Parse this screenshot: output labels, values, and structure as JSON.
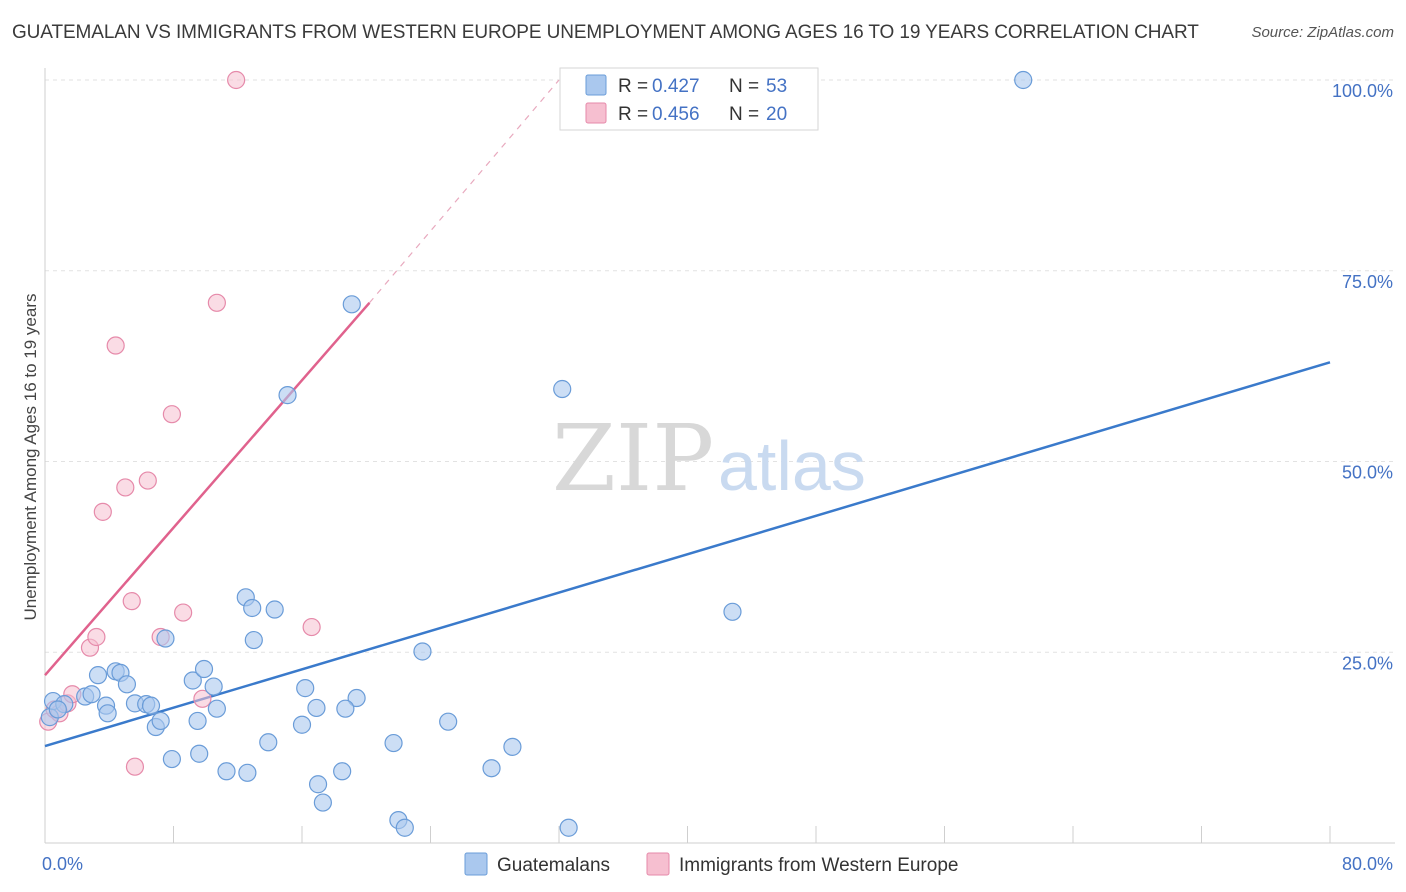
{
  "title": "GUATEMALAN VS IMMIGRANTS FROM WESTERN EUROPE UNEMPLOYMENT AMONG AGES 16 TO 19 YEARS CORRELATION CHART",
  "source": "Source: ZipAtlas.com",
  "watermark": {
    "zip": "ZIP",
    "atlas": "atlas"
  },
  "colors": {
    "blue_fill": "#aac8ee",
    "blue_stroke": "#6a9cd8",
    "blue_line": "#3a7acb",
    "pink_fill": "#f6bfd0",
    "pink_stroke": "#e68aaa",
    "pink_line": "#e0628d",
    "grid": "#e2e2e2",
    "axis_text": "#4472c4"
  },
  "legend": {
    "row1": {
      "r_label": "R =",
      "r_value": "0.427",
      "n_label": "N =",
      "n_value": "53"
    },
    "row2": {
      "r_label": "R =",
      "r_value": "0.456",
      "n_label": "N =",
      "n_value": "20"
    }
  },
  "chart_data": {
    "type": "scatter",
    "title": "GUATEMALAN VS IMMIGRANTS FROM WESTERN EUROPE UNEMPLOYMENT AMONG AGES 16 TO 19 YEARS CORRELATION CHART",
    "xlabel": "",
    "ylabel": "Unemployment Among Ages 16 to 19 years",
    "xlim": [
      0,
      80
    ],
    "ylim": [
      0,
      100
    ],
    "x_tick_labels": [
      "0.0%",
      "80.0%"
    ],
    "y_ticks": [
      25,
      50,
      75,
      100
    ],
    "y_tick_labels": [
      "25.0%",
      "50.0%",
      "75.0%",
      "100.0%"
    ],
    "grid": true,
    "legend_position": "top-center",
    "series": [
      {
        "name": "Guatemalans",
        "color": "#aac8ee",
        "r": 0.427,
        "n": 53,
        "trend": {
          "x": [
            0,
            80
          ],
          "y": [
            12.7,
            63.0
          ]
        },
        "points": [
          {
            "x": 0.3,
            "y": 16.5
          },
          {
            "x": 0.5,
            "y": 18.6
          },
          {
            "x": 1.2,
            "y": 18.2
          },
          {
            "x": 2.5,
            "y": 19.2
          },
          {
            "x": 2.9,
            "y": 19.5
          },
          {
            "x": 3.3,
            "y": 22.0
          },
          {
            "x": 3.8,
            "y": 18.0
          },
          {
            "x": 3.9,
            "y": 17.0
          },
          {
            "x": 4.4,
            "y": 22.5
          },
          {
            "x": 4.7,
            "y": 22.3
          },
          {
            "x": 5.1,
            "y": 20.8
          },
          {
            "x": 5.6,
            "y": 18.3
          },
          {
            "x": 6.3,
            "y": 18.2
          },
          {
            "x": 6.6,
            "y": 18.0
          },
          {
            "x": 6.9,
            "y": 15.2
          },
          {
            "x": 7.2,
            "y": 16.0
          },
          {
            "x": 7.5,
            "y": 26.8
          },
          {
            "x": 7.9,
            "y": 11.0
          },
          {
            "x": 9.2,
            "y": 21.3
          },
          {
            "x": 9.6,
            "y": 11.7
          },
          {
            "x": 9.9,
            "y": 22.8
          },
          {
            "x": 10.5,
            "y": 20.5
          },
          {
            "x": 11.3,
            "y": 9.4
          },
          {
            "x": 12.6,
            "y": 9.2
          },
          {
            "x": 13.0,
            "y": 26.6
          },
          {
            "x": 14.3,
            "y": 30.6
          },
          {
            "x": 16.0,
            "y": 15.5
          },
          {
            "x": 16.2,
            "y": 20.3
          },
          {
            "x": 17.0,
            "y": 7.7
          },
          {
            "x": 17.3,
            "y": 5.3
          },
          {
            "x": 18.5,
            "y": 9.4
          },
          {
            "x": 19.4,
            "y": 19.0
          },
          {
            "x": 21.7,
            "y": 13.1
          },
          {
            "x": 22.0,
            "y": 3.0
          },
          {
            "x": 22.4,
            "y": 2.0
          },
          {
            "x": 23.5,
            "y": 25.1
          },
          {
            "x": 25.1,
            "y": 15.9
          },
          {
            "x": 27.8,
            "y": 9.8
          },
          {
            "x": 29.1,
            "y": 12.6
          },
          {
            "x": 32.6,
            "y": 2.0
          },
          {
            "x": 42.8,
            "y": 30.3
          },
          {
            "x": 60.9,
            "y": 100.0
          },
          {
            "x": 32.2,
            "y": 59.5
          },
          {
            "x": 19.1,
            "y": 70.6
          },
          {
            "x": 15.1,
            "y": 58.7
          },
          {
            "x": 12.5,
            "y": 32.2
          },
          {
            "x": 12.9,
            "y": 30.8
          },
          {
            "x": 10.7,
            "y": 17.6
          },
          {
            "x": 9.5,
            "y": 16.0
          },
          {
            "x": 13.9,
            "y": 13.2
          },
          {
            "x": 16.9,
            "y": 17.7
          },
          {
            "x": 18.7,
            "y": 17.6
          },
          {
            "x": 0.8,
            "y": 17.5
          }
        ]
      },
      {
        "name": "Immigrants from Western Europe",
        "color": "#f6bfd0",
        "r": 0.456,
        "n": 20,
        "trend": {
          "x": [
            0,
            20.2
          ],
          "y": [
            22.0,
            70.8
          ]
        },
        "trend_dashed": {
          "x": [
            20.2,
            32.0
          ],
          "y": [
            70.8,
            100.0
          ]
        },
        "points": [
          {
            "x": 0.2,
            "y": 15.9
          },
          {
            "x": 0.6,
            "y": 17.5
          },
          {
            "x": 0.9,
            "y": 17.0
          },
          {
            "x": 1.4,
            "y": 18.3
          },
          {
            "x": 1.7,
            "y": 19.5
          },
          {
            "x": 2.8,
            "y": 25.6
          },
          {
            "x": 3.2,
            "y": 27.0
          },
          {
            "x": 3.6,
            "y": 43.4
          },
          {
            "x": 4.4,
            "y": 65.2
          },
          {
            "x": 5.0,
            "y": 46.6
          },
          {
            "x": 5.4,
            "y": 31.7
          },
          {
            "x": 5.6,
            "y": 10.0
          },
          {
            "x": 6.4,
            "y": 47.5
          },
          {
            "x": 7.2,
            "y": 27.0
          },
          {
            "x": 7.9,
            "y": 56.2
          },
          {
            "x": 8.6,
            "y": 30.2
          },
          {
            "x": 9.8,
            "y": 18.9
          },
          {
            "x": 10.7,
            "y": 70.8
          },
          {
            "x": 11.9,
            "y": 100.0
          },
          {
            "x": 16.6,
            "y": 28.3
          }
        ]
      }
    ]
  }
}
